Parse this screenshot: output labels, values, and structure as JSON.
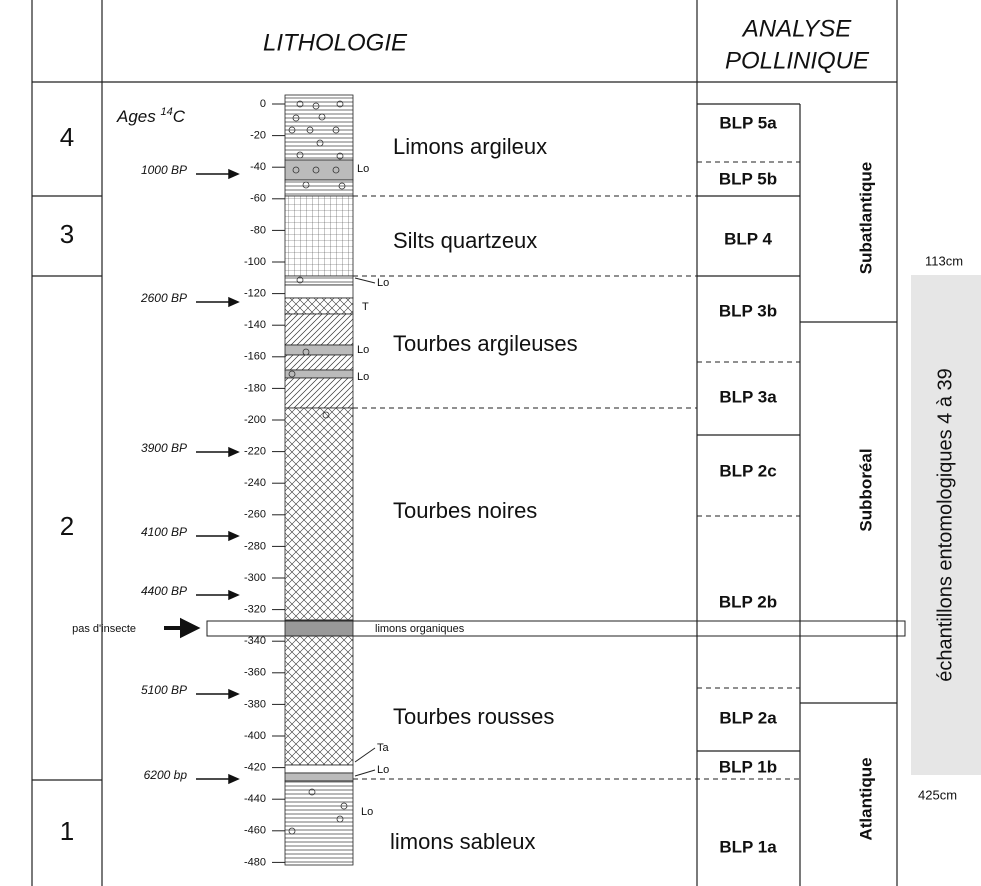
{
  "header": {
    "lithology": "LITHOLOGIE",
    "pollen_line1": "ANALYSE",
    "pollen_line2": "POLLINIQUE"
  },
  "zones": [
    "4",
    "3",
    "2",
    "1"
  ],
  "ages_title": {
    "text": "Ages",
    "sup": "14",
    "unit": "C"
  },
  "depth_ticks": [
    "0",
    "-20",
    "-40",
    "-60",
    "-80",
    "-100",
    "-120",
    "-140",
    "-160",
    "-180",
    "-200",
    "-220",
    "-240",
    "-260",
    "-280",
    "-300",
    "-320",
    "-340",
    "-360",
    "-380",
    "-400",
    "-420",
    "-440",
    "-460",
    "-480"
  ],
  "dates": [
    "1000 BP",
    "2600 BP",
    "3900 BP",
    "4100 BP",
    "4400 BP",
    "5100 BP",
    "6200 bp"
  ],
  "lithology": [
    "Limons argileux",
    "Silts quartzeux",
    "Tourbes argileuses",
    "Tourbes noires",
    "Tourbes rousses",
    "limons sableux"
  ],
  "layer_codes": [
    "Lo",
    "Lo",
    "T",
    "Lo",
    "Lo",
    "Ta",
    "Lo",
    "Lo"
  ],
  "gap": {
    "label": "pas d'insecte",
    "layer": "limons organiques"
  },
  "pollen_zones": [
    "BLP 5a",
    "BLP 5b",
    "BLP 4",
    "BLP 3b",
    "BLP 3a",
    "BLP 2c",
    "BLP 2b",
    "BLP 2a",
    "BLP 1b",
    "BLP 1a"
  ],
  "chronozones": [
    "Subatlantique",
    "Subboréal",
    "Atlantique"
  ],
  "samples": {
    "top": "113cm",
    "bottom": "425cm",
    "label": "échantillons entomologiques 4 à 39"
  }
}
